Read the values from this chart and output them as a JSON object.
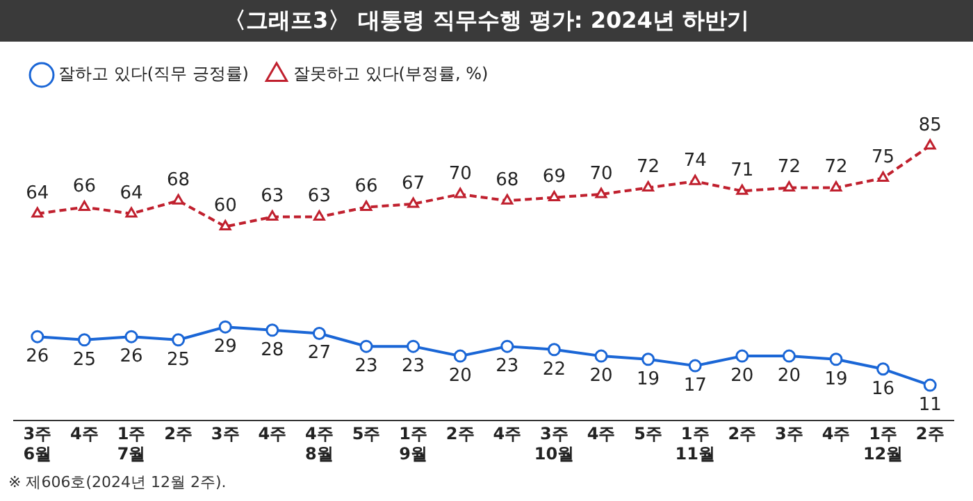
{
  "chart_data": {
    "type": "line",
    "title": "〈그래프3〉 대통령 직무수행 평가: 2024년 하반기",
    "categories": [
      "3주\n6월",
      "4주",
      "1주\n7월",
      "2주",
      "3주",
      "4주",
      "4주\n8월",
      "5주",
      "1주\n9월",
      "2주",
      "4주",
      "3주\n10월",
      "4주",
      "5주",
      "1주\n11월",
      "2주",
      "3주",
      "4주",
      "1주\n12월",
      "2주"
    ],
    "series": [
      {
        "name": "잘하고 있다(직무 긍정률)",
        "color": "#1a66d6",
        "marker": "circle",
        "line_style": "solid",
        "values": [
          26,
          25,
          26,
          25,
          29,
          28,
          27,
          23,
          23,
          20,
          23,
          22,
          20,
          19,
          17,
          20,
          20,
          19,
          16,
          11
        ]
      },
      {
        "name": "잘못하고 있다(부정률, %)",
        "color": "#c0202e",
        "marker": "triangle",
        "line_style": "dashed",
        "values": [
          64,
          66,
          64,
          68,
          60,
          63,
          63,
          66,
          67,
          70,
          68,
          69,
          70,
          72,
          74,
          71,
          72,
          72,
          75,
          85
        ]
      }
    ],
    "tick_labels": "x",
    "grid": false,
    "legend": "top left",
    "data_labels": true,
    "annotations": [
      "※ 제606호(2024년 12월 2주)."
    ]
  }
}
